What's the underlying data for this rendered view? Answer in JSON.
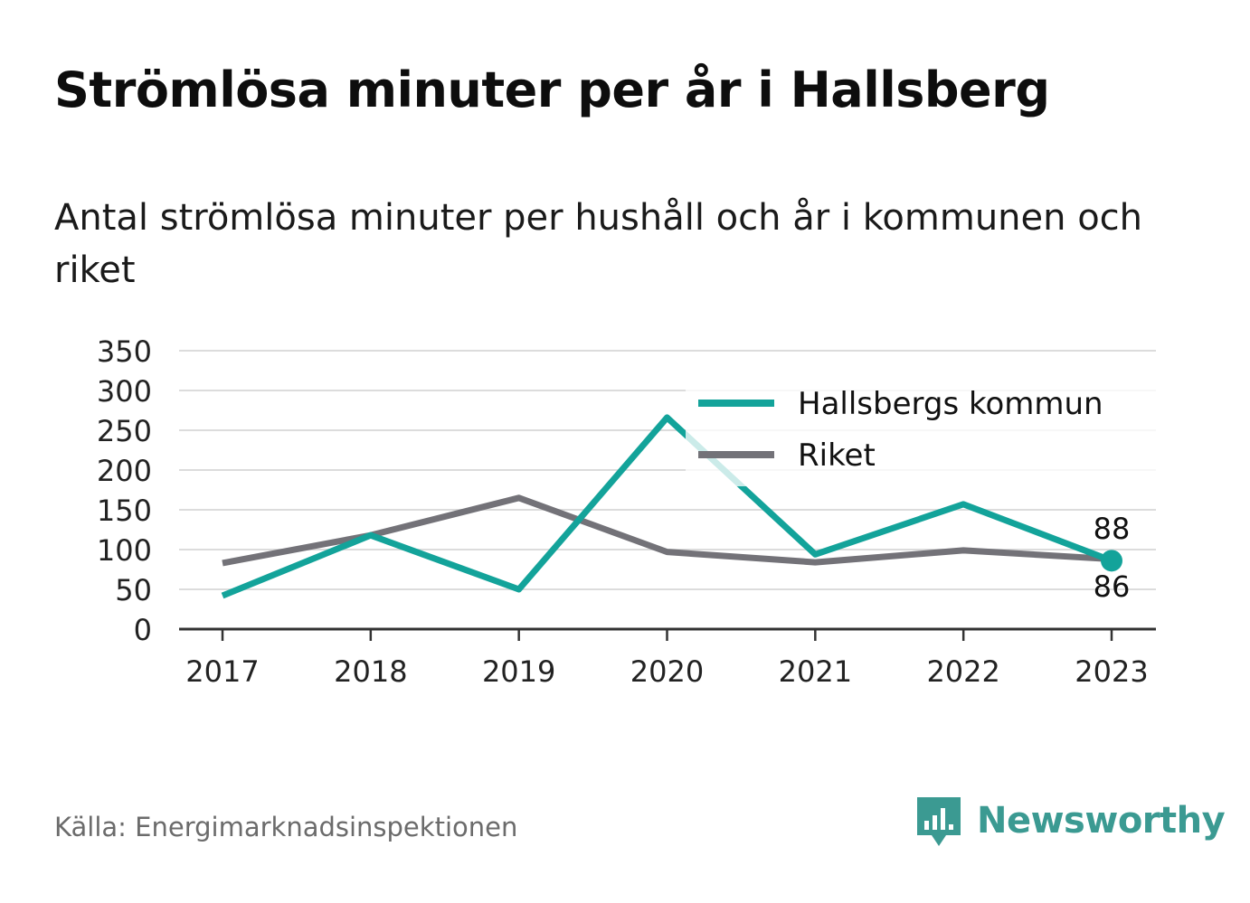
{
  "title": "Strömlösa minuter per år i Hallsberg",
  "subtitle": "Antal strömlösa minuter per hushåll och år i kommunen och riket",
  "source": "Källa: Energimarknadsinspektionen",
  "brand": {
    "name": "Newsworthy",
    "icon": "newsworthy-logo-icon",
    "color": "#3b9a92"
  },
  "chart_data": {
    "type": "line",
    "x": [
      "2017",
      "2018",
      "2019",
      "2020",
      "2021",
      "2022",
      "2023"
    ],
    "ylim": [
      0,
      350
    ],
    "yticks": [
      "0",
      "50",
      "100",
      "150",
      "200",
      "250",
      "300",
      "350"
    ],
    "grid": true,
    "legend": "top-right",
    "series": [
      {
        "name": "Hallsbergs kommun",
        "color": "#13a39a",
        "values": [
          42,
          118,
          50,
          266,
          94,
          157,
          86
        ]
      },
      {
        "name": "Riket",
        "color": "#737278",
        "values": [
          83,
          118,
          165,
          97,
          84,
          99,
          88
        ]
      }
    ],
    "end_labels": {
      "upper": "88",
      "lower": "86"
    }
  }
}
